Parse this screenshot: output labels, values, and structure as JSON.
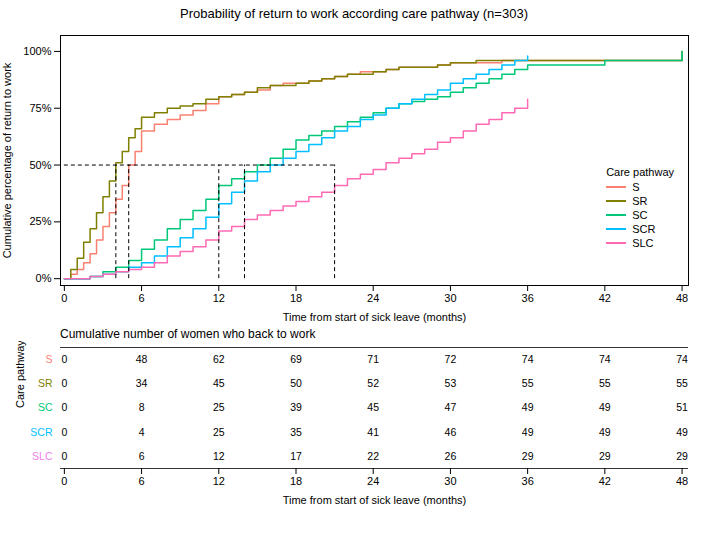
{
  "chart_data": [
    {
      "type": "step",
      "title": "Probability of return to work according care pathway (n=303)",
      "xlabel": "Time from start of sick leave (months)",
      "ylabel": "Cumulative percentage of return to work",
      "xlim": [
        -0.3,
        48.5
      ],
      "ylim": [
        -3,
        107
      ],
      "xticks": [
        0,
        6,
        12,
        18,
        24,
        30,
        36,
        42,
        48
      ],
      "yticks": [
        {
          "value": 0,
          "label": "0%"
        },
        {
          "value": 25,
          "label": "25%"
        },
        {
          "value": 50,
          "label": "50%"
        },
        {
          "value": 75,
          "label": "75%"
        },
        {
          "value": 100,
          "label": "100%"
        }
      ],
      "legend": "lower right",
      "legend_title": "Care pathway",
      "series": [
        {
          "name": "S",
          "color": "#FA8072",
          "x": [
            0,
            0.5,
            1,
            1.5,
            2,
            2.5,
            3,
            3.5,
            4,
            4.5,
            5,
            5.5,
            6,
            7,
            8,
            9,
            10,
            11,
            12,
            13,
            14,
            15,
            16,
            17,
            18,
            19,
            20,
            21,
            22,
            23,
            24,
            25,
            26,
            27,
            28,
            29,
            30,
            31,
            32,
            33,
            34,
            35,
            36,
            48
          ],
          "values": [
            0,
            2,
            4,
            7,
            11,
            17,
            23,
            29,
            35,
            41,
            50,
            56,
            65,
            68,
            70,
            72,
            74,
            77,
            80,
            81,
            82,
            83,
            85,
            86,
            86,
            87,
            88,
            89,
            90,
            91,
            91,
            92,
            93,
            93,
            93,
            94,
            95,
            95,
            95,
            95,
            96,
            96,
            96,
            96
          ]
        },
        {
          "name": "SR",
          "color": "#808000",
          "x": [
            0,
            0.5,
            1,
            1.5,
            2,
            2.5,
            3,
            3.5,
            4,
            4.5,
            5,
            5.5,
            6,
            7,
            8,
            9,
            10,
            11,
            12,
            13,
            14,
            15,
            16,
            17,
            18,
            19,
            20,
            21,
            22,
            23,
            24,
            25,
            26,
            27,
            28,
            29,
            30,
            31,
            32,
            33,
            34,
            35,
            36,
            48
          ],
          "values": [
            0,
            4,
            9,
            16,
            22,
            29,
            36,
            43,
            51,
            56,
            62,
            66,
            71,
            73,
            75,
            76,
            77,
            79,
            80,
            81,
            82,
            84,
            85,
            85,
            86,
            87,
            88,
            89,
            90,
            90,
            91,
            92,
            93,
            93,
            93,
            94,
            95,
            95,
            96,
            96,
            96,
            96,
            96,
            100
          ]
        },
        {
          "name": "SC",
          "color": "#00C878",
          "x": [
            0,
            1,
            2,
            3,
            4,
            5,
            6,
            7,
            8,
            9,
            10,
            11,
            12,
            13,
            14,
            15,
            16,
            17,
            18,
            19,
            20,
            21,
            22,
            23,
            24,
            25,
            26,
            27,
            28,
            29,
            30,
            31,
            32,
            33,
            34,
            35,
            36,
            42,
            48
          ],
          "values": [
            0,
            0,
            1,
            3,
            5,
            8,
            13,
            17,
            22,
            26,
            30,
            35,
            41,
            44,
            47,
            50,
            53,
            57,
            61,
            63,
            65,
            67,
            69,
            71,
            73,
            75,
            77,
            78,
            79,
            80,
            82,
            84,
            86,
            88,
            90,
            92,
            94,
            96,
            100
          ]
        },
        {
          "name": "SCR",
          "color": "#00BFFF",
          "x": [
            0,
            1,
            2,
            3,
            4,
            5,
            6,
            7,
            8,
            9,
            10,
            11,
            12,
            13,
            14,
            15,
            16,
            17,
            18,
            19,
            20,
            21,
            22,
            23,
            24,
            25,
            26,
            27,
            28,
            29,
            30,
            31,
            32,
            33,
            34,
            35,
            36
          ],
          "values": [
            0,
            0,
            1,
            2,
            3,
            5,
            7,
            10,
            14,
            18,
            22,
            27,
            33,
            38,
            43,
            47,
            50,
            53,
            56,
            59,
            62,
            65,
            67,
            70,
            72,
            75,
            77,
            79,
            81,
            83,
            86,
            88,
            90,
            92,
            94,
            96,
            98
          ]
        },
        {
          "name": "SLC",
          "color": "#FF69B4",
          "x": [
            0,
            1,
            2,
            3,
            4,
            5,
            6,
            7,
            8,
            9,
            10,
            11,
            12,
            13,
            14,
            15,
            16,
            17,
            18,
            19,
            20,
            21,
            22,
            23,
            24,
            25,
            26,
            27,
            28,
            29,
            30,
            31,
            32,
            33,
            34,
            35,
            36
          ],
          "values": [
            0,
            0,
            1,
            2,
            3,
            4,
            5,
            7,
            10,
            12,
            14,
            17,
            21,
            23,
            26,
            28,
            30,
            32,
            34,
            36,
            38,
            41,
            44,
            46,
            48,
            51,
            53,
            55,
            57,
            60,
            62,
            65,
            68,
            70,
            73,
            75,
            79
          ]
        }
      ],
      "reference_lines": {
        "color": "#000000",
        "line_style": "dashed",
        "horizontal": [
          {
            "y": 50,
            "x1": 0,
            "x2": 21
          }
        ],
        "vertical": [
          {
            "x": 5,
            "y1": 0,
            "y2": 50
          },
          {
            "x": 4,
            "y1": 0,
            "y2": 50
          },
          {
            "x": 12,
            "y1": 0,
            "y2": 50
          },
          {
            "x": 14,
            "y1": 0,
            "y2": 50
          },
          {
            "x": 21,
            "y1": 0,
            "y2": 50
          }
        ]
      }
    },
    {
      "type": "table",
      "title": "Cumulative number of women who back to work",
      "xlabel": "Time from start of sick leave (months)",
      "ylabel": "Care pathway",
      "xlim": [
        -0.3,
        48.5
      ],
      "xticks": [
        0,
        6,
        12,
        18,
        24,
        30,
        36,
        42,
        48
      ],
      "x": [
        0,
        6,
        12,
        18,
        24,
        30,
        36,
        42,
        48
      ],
      "series": [
        {
          "name": "S",
          "color": "#FA8072",
          "values": [
            0,
            48,
            62,
            69,
            71,
            72,
            74,
            74,
            74
          ]
        },
        {
          "name": "SR",
          "color": "#808000",
          "values": [
            0,
            34,
            45,
            50,
            52,
            53,
            55,
            55,
            55
          ]
        },
        {
          "name": "SC",
          "color": "#00C878",
          "values": [
            0,
            8,
            25,
            39,
            45,
            47,
            49,
            49,
            51
          ]
        },
        {
          "name": "SCR",
          "color": "#00BFFF",
          "values": [
            0,
            4,
            25,
            35,
            41,
            46,
            49,
            49,
            49
          ]
        },
        {
          "name": "SLC",
          "color": "#EE82EE",
          "values": [
            0,
            6,
            12,
            17,
            22,
            26,
            29,
            29,
            29
          ]
        }
      ]
    }
  ]
}
